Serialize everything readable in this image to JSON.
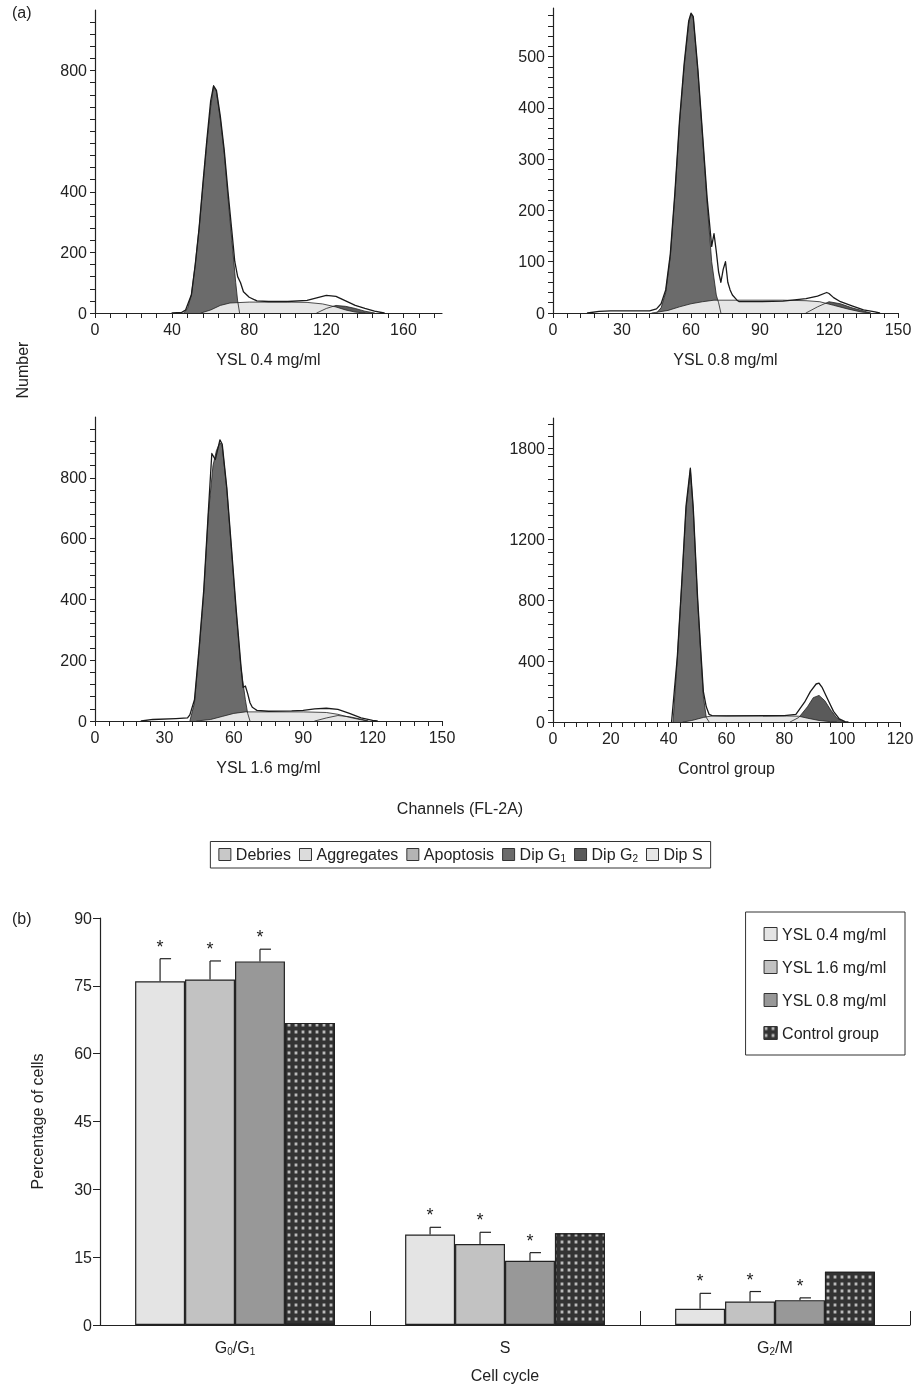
{
  "chart_data": [
    {
      "type": "area",
      "xlabel": "YSL 0.4 mg/ml",
      "ylabel": "Number",
      "annotations": [
        "(a)"
      ],
      "marker": "none",
      "xlim": [
        0,
        180
      ],
      "ylim": [
        0,
        1000
      ],
      "xticks": [
        0,
        {
          "value": 8,
          "label": null
        },
        {
          "value": 16,
          "label": null
        },
        {
          "value": 24,
          "label": null
        },
        {
          "value": 32,
          "label": null
        },
        40,
        {
          "value": 48,
          "label": null
        },
        {
          "value": 56,
          "label": null
        },
        {
          "value": 64,
          "label": null
        },
        {
          "value": 72,
          "label": null
        },
        80,
        {
          "value": 88,
          "label": null
        },
        {
          "value": 96,
          "label": null
        },
        {
          "value": 104,
          "label": null
        },
        {
          "value": 112,
          "label": null
        },
        120,
        {
          "value": 128,
          "label": null
        },
        {
          "value": 136,
          "label": null
        },
        {
          "value": 144,
          "label": null
        },
        {
          "value": 152,
          "label": null
        },
        160,
        {
          "value": 168,
          "label": null
        },
        {
          "value": 176,
          "label": null
        }
      ],
      "yticks": [
        0,
        {
          "value": 40,
          "label": null
        },
        {
          "value": 80,
          "label": null
        },
        {
          "value": 120,
          "label": null
        },
        {
          "value": 160,
          "label": null
        },
        200,
        {
          "value": 240,
          "label": null
        },
        {
          "value": 280,
          "label": null
        },
        {
          "value": 320,
          "label": null
        },
        {
          "value": 360,
          "label": null
        },
        400,
        {
          "value": 440,
          "label": null
        },
        {
          "value": 480,
          "label": null
        },
        {
          "value": 520,
          "label": null
        },
        {
          "value": 560,
          "label": null
        },
        {
          "value": 600,
          "label": null
        },
        {
          "value": 640,
          "label": null
        },
        {
          "value": 680,
          "label": null
        },
        {
          "value": 720,
          "label": null
        },
        {
          "value": 760,
          "label": null
        },
        800,
        {
          "value": 840,
          "label": null
        },
        {
          "value": 880,
          "label": null
        },
        {
          "value": 920,
          "label": null
        },
        {
          "value": 960,
          "label": null
        }
      ],
      "series": [
        {
          "type": "area",
          "color": "#6b6b6b",
          "x": [
            46,
            48,
            50,
            52,
            54,
            56,
            58,
            60,
            61.5,
            63,
            65,
            67,
            69,
            71,
            73,
            74,
            75
          ],
          "values": [
            0,
            15,
            60,
            160,
            280,
            420,
            560,
            680,
            748,
            730,
            640,
            530,
            380,
            240,
            100,
            40,
            0
          ]
        },
        {
          "type": "area",
          "color": "#5a5a5a",
          "x": [
            115,
            120,
            125,
            130,
            135,
            140,
            145
          ],
          "values": [
            0,
            15,
            25,
            22,
            15,
            6,
            0
          ]
        },
        {
          "type": "area",
          "color": "#e6e6e6",
          "x": [
            55,
            60,
            65,
            70,
            80,
            100,
            110,
            118,
            125,
            130,
            135,
            140
          ],
          "values": [
            0,
            10,
            25,
            33,
            36,
            36,
            35,
            30,
            20,
            10,
            3,
            0
          ]
        },
        {
          "type": "line",
          "color": "#1a1a1a",
          "x": [
            40,
            45,
            47,
            50,
            52,
            54,
            56,
            58,
            60,
            61.5,
            63,
            65,
            67,
            69,
            71,
            72.5,
            74,
            75.5,
            77,
            80,
            84,
            90,
            100,
            110,
            115,
            120,
            125,
            130,
            135,
            140,
            145,
            150
          ],
          "values": [
            0,
            2,
            10,
            60,
            160,
            280,
            430,
            570,
            700,
            750,
            735,
            650,
            540,
            400,
            270,
            170,
            120,
            100,
            70,
            52,
            40,
            38,
            38,
            42,
            50,
            58,
            55,
            40,
            25,
            15,
            6,
            0
          ]
        }
      ]
    },
    {
      "type": "area",
      "xlabel": "YSL 0.8 mg/ml",
      "marker": "none",
      "xlim": [
        0,
        150
      ],
      "ylim": [
        0,
        595
      ],
      "xticks": [
        0,
        {
          "value": 6,
          "label": null
        },
        {
          "value": 12,
          "label": null
        },
        {
          "value": 18,
          "label": null
        },
        {
          "value": 24,
          "label": null
        },
        30,
        {
          "value": 36,
          "label": null
        },
        {
          "value": 42,
          "label": null
        },
        {
          "value": 48,
          "label": null
        },
        {
          "value": 54,
          "label": null
        },
        60,
        {
          "value": 66,
          "label": null
        },
        {
          "value": 72,
          "label": null
        },
        {
          "value": 78,
          "label": null
        },
        {
          "value": 84,
          "label": null
        },
        90,
        {
          "value": 96,
          "label": null
        },
        {
          "value": 102,
          "label": null
        },
        {
          "value": 108,
          "label": null
        },
        {
          "value": 114,
          "label": null
        },
        120,
        {
          "value": 126,
          "label": null
        },
        {
          "value": 132,
          "label": null
        },
        {
          "value": 138,
          "label": null
        },
        {
          "value": 144,
          "label": null
        },
        150
      ],
      "yticks": [
        0,
        {
          "value": 20,
          "label": null
        },
        {
          "value": 40,
          "label": null
        },
        {
          "value": 60,
          "label": null
        },
        {
          "value": 80,
          "label": null
        },
        100,
        {
          "value": 120,
          "label": null
        },
        {
          "value": 140,
          "label": null
        },
        {
          "value": 160,
          "label": null
        },
        {
          "value": 180,
          "label": null
        },
        200,
        {
          "value": 220,
          "label": null
        },
        {
          "value": 240,
          "label": null
        },
        {
          "value": 260,
          "label": null
        },
        {
          "value": 280,
          "label": null
        },
        300,
        {
          "value": 320,
          "label": null
        },
        {
          "value": 340,
          "label": null
        },
        {
          "value": 360,
          "label": null
        },
        {
          "value": 380,
          "label": null
        },
        400,
        {
          "value": 420,
          "label": null
        },
        {
          "value": 440,
          "label": null
        },
        {
          "value": 460,
          "label": null
        },
        {
          "value": 480,
          "label": null
        },
        500,
        {
          "value": 520,
          "label": null
        },
        {
          "value": 540,
          "label": null
        },
        {
          "value": 560,
          "label": null
        },
        {
          "value": 580,
          "label": null
        }
      ],
      "series": [
        {
          "type": "area",
          "color": "#6b6b6b",
          "x": [
            45,
            47,
            49,
            51,
            53,
            55,
            57,
            59,
            60,
            61,
            63,
            65,
            67,
            69,
            71,
            72,
            73
          ],
          "values": [
            0,
            10,
            40,
            110,
            230,
            370,
            480,
            565,
            583,
            575,
            470,
            345,
            215,
            100,
            35,
            20,
            0
          ]
        },
        {
          "type": "area",
          "color": "#5a5a5a",
          "x": [
            110,
            115,
            120,
            125,
            130,
            135,
            138
          ],
          "values": [
            0,
            12,
            22,
            18,
            10,
            4,
            0
          ]
        },
        {
          "type": "area",
          "color": "#e6e6e6",
          "x": [
            43,
            50,
            55,
            60,
            65,
            70,
            80,
            100,
            110,
            116,
            122,
            128,
            134,
            138
          ],
          "values": [
            0,
            5,
            12,
            18,
            22,
            25,
            25,
            25,
            24,
            22,
            15,
            8,
            2,
            0
          ]
        },
        {
          "type": "line",
          "color": "#1a1a1a",
          "x": [
            15,
            20,
            25,
            35,
            42,
            45,
            47,
            49,
            51,
            53,
            55,
            57,
            59,
            60,
            61,
            63,
            65,
            67,
            69,
            70,
            71,
            72,
            73,
            74,
            75,
            76,
            77,
            78,
            80,
            81,
            90,
            100,
            110,
            115,
            119,
            120,
            122,
            125,
            130,
            135,
            140,
            142
          ],
          "values": [
            0,
            3,
            4,
            4,
            4,
            8,
            18,
            45,
            115,
            235,
            375,
            485,
            570,
            585,
            578,
            475,
            350,
            225,
            130,
            155,
            120,
            80,
            60,
            85,
            100,
            60,
            45,
            35,
            25,
            22,
            22,
            23,
            28,
            33,
            40,
            38,
            30,
            22,
            14,
            6,
            2,
            0
          ]
        }
      ]
    },
    {
      "type": "area",
      "xlabel": "YSL 1.6 mg/ml",
      "marker": "none",
      "xlim": [
        0,
        150
      ],
      "ylim": [
        0,
        1000
      ],
      "xticks": [
        0,
        {
          "value": 6,
          "label": null
        },
        {
          "value": 12,
          "label": null
        },
        {
          "value": 18,
          "label": null
        },
        {
          "value": 24,
          "label": null
        },
        30,
        {
          "value": 36,
          "label": null
        },
        {
          "value": 42,
          "label": null
        },
        {
          "value": 48,
          "label": null
        },
        {
          "value": 54,
          "label": null
        },
        60,
        {
          "value": 66,
          "label": null
        },
        {
          "value": 72,
          "label": null
        },
        {
          "value": 78,
          "label": null
        },
        {
          "value": 84,
          "label": null
        },
        90,
        {
          "value": 96,
          "label": null
        },
        {
          "value": 102,
          "label": null
        },
        {
          "value": 108,
          "label": null
        },
        {
          "value": 114,
          "label": null
        },
        120,
        {
          "value": 126,
          "label": null
        },
        {
          "value": 132,
          "label": null
        },
        {
          "value": 138,
          "label": null
        },
        {
          "value": 144,
          "label": null
        },
        150
      ],
      "yticks": [
        0,
        {
          "value": 40,
          "label": null
        },
        {
          "value": 80,
          "label": null
        },
        {
          "value": 120,
          "label": null
        },
        {
          "value": 160,
          "label": null
        },
        200,
        {
          "value": 240,
          "label": null
        },
        {
          "value": 280,
          "label": null
        },
        {
          "value": 320,
          "label": null
        },
        {
          "value": 360,
          "label": null
        },
        400,
        {
          "value": 440,
          "label": null
        },
        {
          "value": 480,
          "label": null
        },
        {
          "value": 520,
          "label": null
        },
        {
          "value": 560,
          "label": null
        },
        600,
        {
          "value": 640,
          "label": null
        },
        {
          "value": 680,
          "label": null
        },
        {
          "value": 720,
          "label": null
        },
        {
          "value": 760,
          "label": null
        },
        800,
        {
          "value": 840,
          "label": null
        },
        {
          "value": 880,
          "label": null
        },
        {
          "value": 920,
          "label": null
        },
        {
          "value": 960,
          "label": null
        }
      ],
      "series": [
        {
          "type": "area",
          "color": "#6b6b6b",
          "x": [
            41,
            43,
            45,
            47,
            49,
            51,
            52.5,
            54,
            55,
            57,
            59,
            61,
            63,
            65,
            66,
            67
          ],
          "values": [
            0,
            60,
            230,
            420,
            680,
            840,
            890,
            915,
            905,
            760,
            560,
            360,
            180,
            70,
            25,
            0
          ]
        },
        {
          "type": "area",
          "color": "#5a5a5a",
          "x": [
            95,
            100,
            105,
            110,
            115,
            118
          ],
          "values": [
            0,
            10,
            18,
            14,
            6,
            0
          ]
        },
        {
          "type": "area",
          "color": "#e6e6e6",
          "x": [
            44,
            50,
            55,
            60,
            65,
            80,
            90,
            100,
            105,
            110,
            115,
            118
          ],
          "values": [
            0,
            5,
            15,
            25,
            30,
            30,
            30,
            28,
            22,
            12,
            4,
            0
          ]
        },
        {
          "type": "line",
          "color": "#1a1a1a",
          "x": [
            20,
            25,
            35,
            40,
            41,
            43,
            45,
            47,
            49,
            50.5,
            52,
            54,
            55,
            57,
            59,
            61,
            63,
            64,
            65,
            66,
            67,
            68,
            70,
            75,
            85,
            90,
            95,
            100,
            105,
            110,
            115,
            120,
            122
          ],
          "values": [
            0,
            5,
            8,
            10,
            20,
            70,
            240,
            430,
            690,
            880,
            860,
            925,
            910,
            765,
            570,
            370,
            190,
            110,
            115,
            90,
            60,
            45,
            35,
            32,
            33,
            35,
            40,
            42,
            38,
            25,
            10,
            2,
            0
          ]
        }
      ]
    },
    {
      "type": "area",
      "xlabel": "Control group",
      "annotations": [
        "Channels (FL-2A)"
      ],
      "marker": "none",
      "legend": "bottom",
      "xlim": [
        0,
        120
      ],
      "ylim": [
        0,
        2000
      ],
      "xticks": [
        0,
        {
          "value": 4,
          "label": null
        },
        {
          "value": 8,
          "label": null
        },
        {
          "value": 12,
          "label": null
        },
        {
          "value": 16,
          "label": null
        },
        20,
        {
          "value": 24,
          "label": null
        },
        {
          "value": 28,
          "label": null
        },
        {
          "value": 32,
          "label": null
        },
        {
          "value": 36,
          "label": null
        },
        40,
        {
          "value": 44,
          "label": null
        },
        {
          "value": 48,
          "label": null
        },
        {
          "value": 52,
          "label": null
        },
        {
          "value": 56,
          "label": null
        },
        60,
        {
          "value": 64,
          "label": null
        },
        {
          "value": 68,
          "label": null
        },
        {
          "value": 72,
          "label": null
        },
        {
          "value": 76,
          "label": null
        },
        80,
        {
          "value": 84,
          "label": null
        },
        {
          "value": 88,
          "label": null
        },
        {
          "value": 92,
          "label": null
        },
        {
          "value": 96,
          "label": null
        },
        100,
        {
          "value": 104,
          "label": null
        },
        {
          "value": 108,
          "label": null
        },
        {
          "value": 112,
          "label": null
        },
        {
          "value": 116,
          "label": null
        },
        120
      ],
      "yticks": [
        0,
        {
          "value": 80,
          "label": null
        },
        {
          "value": 160,
          "label": null
        },
        {
          "value": 240,
          "label": null
        },
        {
          "value": 320,
          "label": null
        },
        400,
        {
          "value": 480,
          "label": null
        },
        {
          "value": 560,
          "label": null
        },
        {
          "value": 640,
          "label": null
        },
        {
          "value": 720,
          "label": null
        },
        800,
        {
          "value": 880,
          "label": null
        },
        {
          "value": 960,
          "label": null
        },
        {
          "value": 1040,
          "label": null
        },
        {
          "value": 1120,
          "label": null
        },
        1200,
        {
          "value": 1280,
          "label": null
        },
        {
          "value": 1360,
          "label": null
        },
        {
          "value": 1440,
          "label": null
        },
        {
          "value": 1520,
          "label": null
        },
        {
          "value": 1600,
          "label": null
        },
        {
          "value": 1680,
          "label": null
        },
        {
          "value": 1760,
          "label": null
        },
        1800,
        {
          "value": 1880,
          "label": null
        },
        {
          "value": 1960,
          "label": null
        }
      ],
      "series": [
        {
          "type": "area",
          "name": "Debries",
          "color": "#c8c8c8"
        },
        {
          "type": "area",
          "name": "Aggregates",
          "color": "#dcdcdc"
        },
        {
          "type": "area",
          "name": "Apoptosis",
          "color": "#b4b4b4"
        },
        {
          "type": "area",
          "name": "Dip G$_{1}$",
          "color": "#6b6b6b",
          "x": [
            41.5,
            43,
            44.5,
            46,
            47.5,
            48.5,
            50,
            51,
            52,
            53,
            54
          ],
          "values": [
            0,
            420,
            900,
            1400,
            1660,
            1400,
            800,
            480,
            170,
            30,
            0
          ]
        },
        {
          "type": "area",
          "name": "Dip G$_{2}$",
          "color": "#5a5a5a",
          "x": [
            82,
            85,
            88,
            90,
            92,
            94,
            96,
            98,
            100,
            101
          ],
          "values": [
            0,
            30,
            100,
            160,
            175,
            140,
            80,
            30,
            5,
            0
          ]
        },
        {
          "type": "area",
          "name": "Dip S",
          "color": "#e6e6e6",
          "x": [
            45,
            48,
            52,
            55,
            60,
            80,
            85,
            88,
            92,
            96,
            98
          ],
          "values": [
            0,
            10,
            30,
            40,
            40,
            40,
            38,
            25,
            10,
            2,
            0
          ]
        },
        {
          "type": "line",
          "color": "#1a1a1a",
          "x": [
            41,
            43,
            44.5,
            46,
            47.5,
            48.5,
            50,
            51,
            52,
            53,
            54,
            55,
            60,
            80,
            84,
            87,
            89,
            91,
            92,
            93,
            95,
            97,
            99,
            101,
            102
          ],
          "values": [
            0,
            430,
            910,
            1420,
            1670,
            1410,
            820,
            500,
            200,
            100,
            50,
            42,
            40,
            42,
            50,
            130,
            200,
            250,
            255,
            230,
            150,
            70,
            20,
            2,
            0
          ]
        }
      ]
    },
    {
      "type": "bar",
      "xlabel": "Cell cycle",
      "ylabel": "Percentage of cells",
      "annotations": [
        "(b)"
      ],
      "legend": "top right",
      "categories": [
        "G$_{0}$/G$_{1}$",
        "S",
        "G$_{2}$/M"
      ],
      "ylim": [
        0,
        90
      ],
      "yticks": [
        0,
        15,
        30,
        45,
        60,
        75,
        90
      ],
      "series": [
        {
          "name": "YSL 0.4 mg/ml",
          "color": "#e4e4e4",
          "values": [
            76,
            20,
            3.6
          ],
          "errors": [
            5,
            1.6,
            3.4
          ],
          "value_labels": [
            "*",
            "*",
            "*"
          ]
        },
        {
          "name": "YSL 1.6 mg/ml",
          "color": "#c2c2c2",
          "values": [
            76.4,
            17.9,
            5.2
          ],
          "errors": [
            4.1,
            2.6,
            2.2
          ],
          "value_labels": [
            "*",
            "*",
            "*"
          ]
        },
        {
          "name": "YSL 0.8 mg/ml",
          "color": "#989898",
          "values": [
            80.4,
            14.2,
            5.5
          ],
          "errors": [
            2.7,
            1.8,
            0.5
          ],
          "value_labels": [
            "*",
            "*",
            "*"
          ]
        },
        {
          "name": "Control group",
          "color": "#333333",
          "values": [
            66.8,
            20.3,
            11.8
          ]
        }
      ]
    }
  ]
}
